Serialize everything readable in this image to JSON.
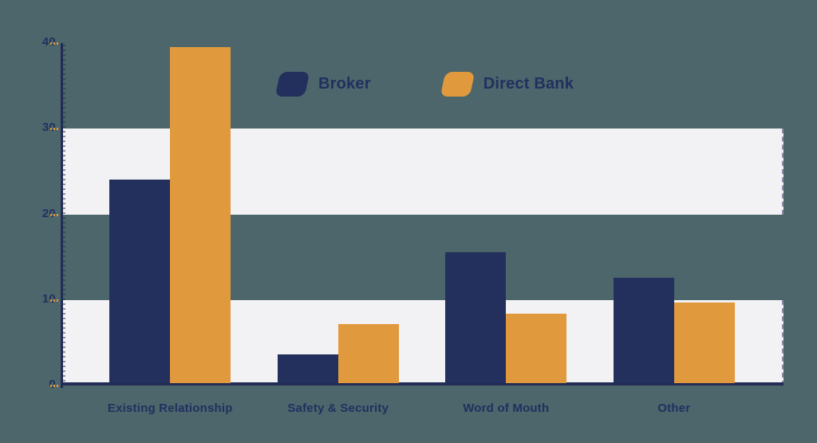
{
  "chart_data": {
    "type": "bar",
    "categories": [
      "Existing Relationship",
      "Safety & Security",
      "Word of Mouth",
      "Other"
    ],
    "series": [
      {
        "name": "Broker",
        "color": "#232f5c",
        "values": [
          23.8,
          3.4,
          15.3,
          12.3
        ]
      },
      {
        "name": "Direct Bank",
        "color": "#e09a3d",
        "values": [
          39.3,
          6.9,
          8.1,
          9.4
        ]
      }
    ],
    "xlabel": "",
    "ylabel": "",
    "ylim": [
      0,
      40
    ],
    "yticks": [
      0,
      10,
      20,
      30,
      40
    ],
    "legend_position": "top-center",
    "grid": "alternating-horizontal-bands",
    "band_rows": [
      [
        0,
        10
      ],
      [
        20,
        30
      ]
    ]
  },
  "colors": {
    "background": "#4c666c",
    "band": "#f2f1f3",
    "axis": "#222c55",
    "text": "#22305e",
    "tick_dash": "#e09a3d"
  }
}
